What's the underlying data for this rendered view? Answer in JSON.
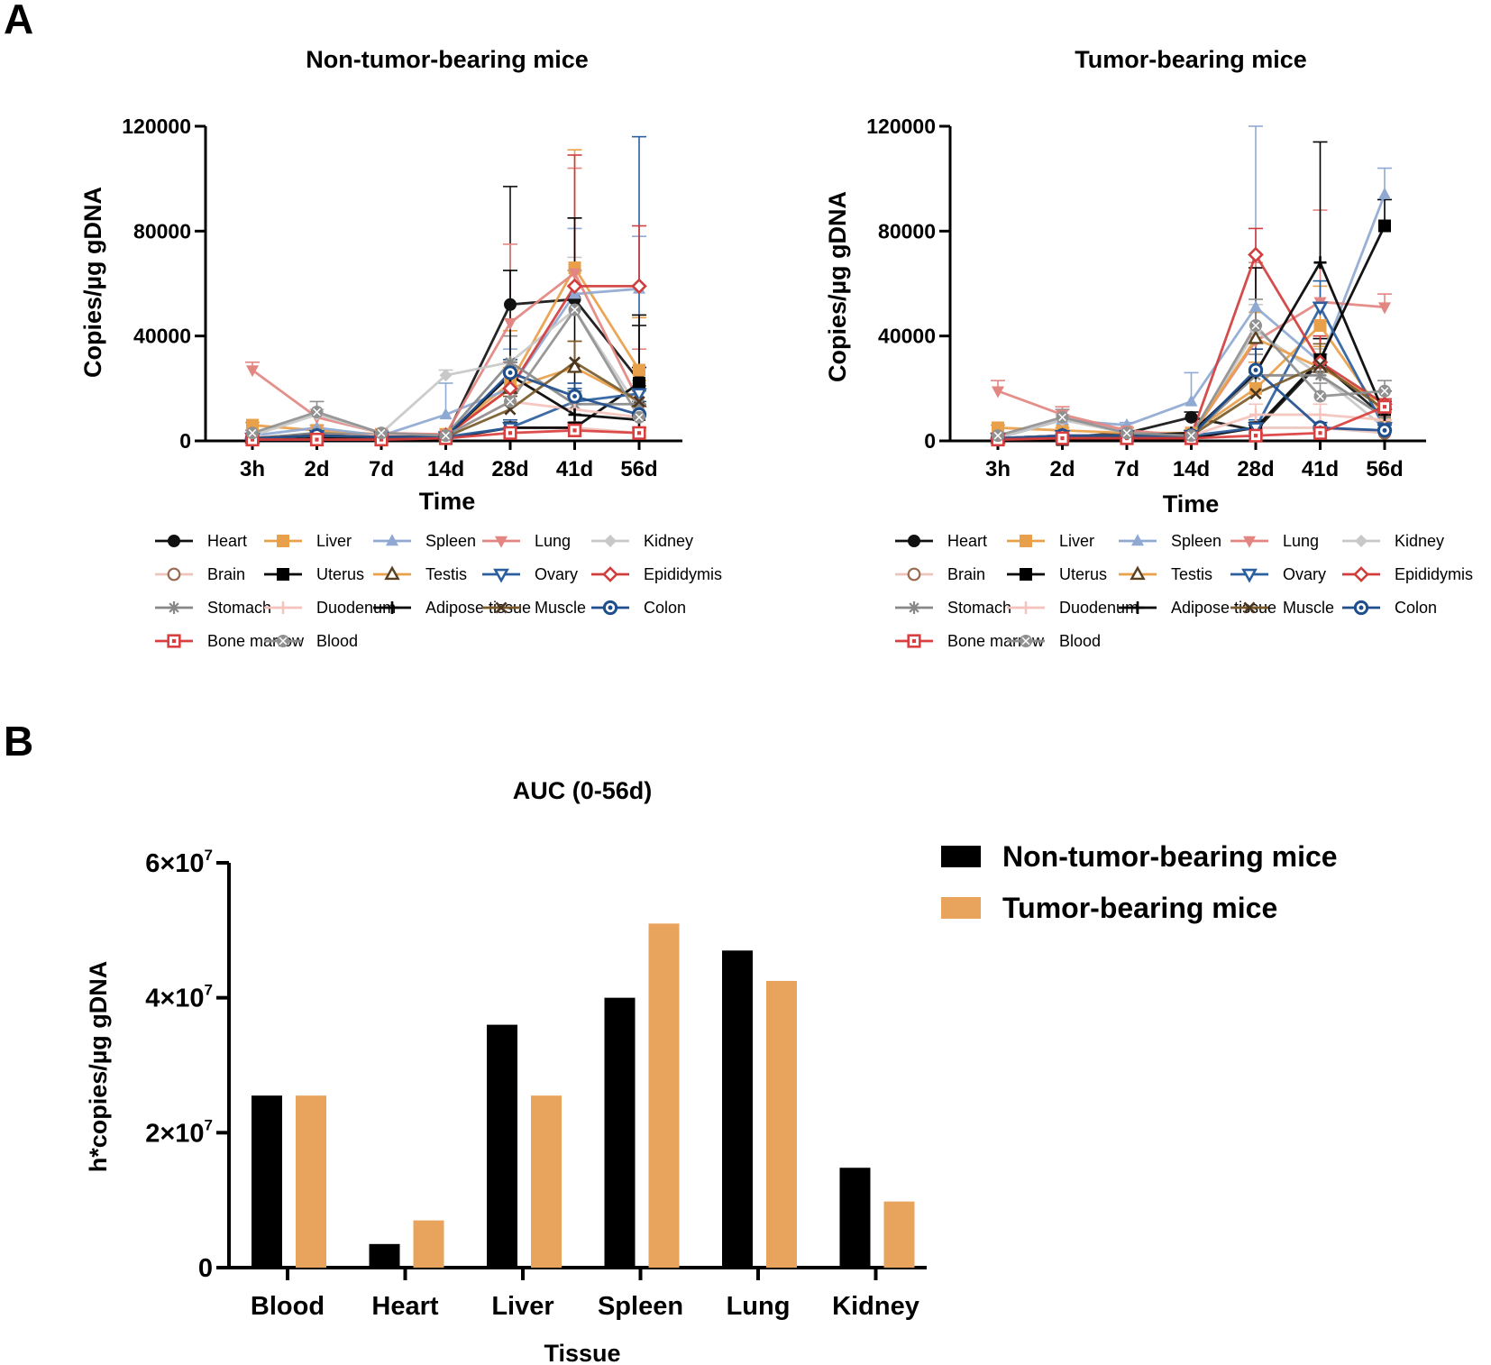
{
  "panels": {
    "a": "A",
    "b": "B"
  },
  "chart_data": [
    {
      "id": "line-a1",
      "type": "line",
      "title": "Non-tumor-bearing mice",
      "xlabel": "Time",
      "ylabel": "Copies/µg gDNA",
      "categories": [
        "3h",
        "2d",
        "7d",
        "14d",
        "28d",
        "41d",
        "56d"
      ],
      "ylim": [
        0,
        120000
      ],
      "yticks": [
        "0",
        "40000",
        "80000",
        "120000"
      ],
      "series": [
        {
          "name": "Heart",
          "color": "#111111",
          "marker": "circle",
          "values": [
            500,
            3000,
            1500,
            1500,
            52000,
            54000,
            23000
          ],
          "errors": [
            500,
            1000,
            500,
            500,
            45000,
            31000,
            21000
          ]
        },
        {
          "name": "Liver",
          "color": "#e9a04a",
          "marker": "square",
          "values": [
            6000,
            4000,
            2500,
            2500,
            22000,
            66000,
            27000
          ],
          "errors": [
            1000,
            1000,
            500,
            500,
            20000,
            45000,
            20000
          ]
        },
        {
          "name": "Spleen",
          "color": "#8fa9d2",
          "marker": "triangle",
          "values": [
            2000,
            5000,
            2000,
            10000,
            20000,
            56000,
            58000
          ],
          "errors": [
            1000,
            1000,
            500,
            12000,
            15000,
            25000,
            20000
          ]
        },
        {
          "name": "Lung",
          "color": "#e38581",
          "marker": "triangle-down",
          "values": [
            27000,
            9000,
            3000,
            2500,
            45000,
            64000,
            15000
          ],
          "errors": [
            3000,
            3000,
            1000,
            1000,
            30000,
            40000,
            20000
          ]
        },
        {
          "name": "Kidney",
          "color": "#c8c8c8",
          "marker": "diamond",
          "values": [
            2000,
            10000,
            3000,
            25000,
            30000,
            50000,
            12000
          ],
          "errors": [
            1000,
            2000,
            1000,
            2000,
            10000,
            20000,
            10000
          ]
        },
        {
          "name": "Brain",
          "color": "#eec5bd",
          "marker": "circle-open",
          "values": [
            1500,
            2000,
            1500,
            1000,
            5000,
            5000,
            3000
          ],
          "errors": [
            500,
            500,
            500,
            500,
            2000,
            2000,
            1000
          ]
        },
        {
          "name": "Uterus",
          "color": "#000000",
          "marker": "square",
          "values": [
            500,
            1000,
            1000,
            1000,
            5000,
            5000,
            22000
          ],
          "errors": [
            200,
            300,
            300,
            300,
            2000,
            2000,
            6000
          ]
        },
        {
          "name": "Testis",
          "color": "#e9a04a",
          "marker": "triangle-open",
          "values": [
            1000,
            2000,
            2000,
            2000,
            20000,
            28000,
            15000
          ],
          "errors": [
            500,
            500,
            500,
            500,
            8000,
            10000,
            8000
          ]
        },
        {
          "name": "Ovary",
          "color": "#2b5e9e",
          "marker": "triangle-down-open",
          "values": [
            1000,
            2000,
            1500,
            1500,
            5000,
            15000,
            18000
          ],
          "errors": [
            500,
            500,
            500,
            500,
            3000,
            5000,
            98000
          ]
        },
        {
          "name": "Epididymis",
          "color": "#d03d3d",
          "marker": "diamond-open",
          "values": [
            1000,
            2000,
            2000,
            2000,
            20000,
            59000,
            59000
          ],
          "errors": [
            500,
            500,
            500,
            500,
            10000,
            50000,
            23000
          ]
        },
        {
          "name": "Stomach",
          "color": "#888888",
          "marker": "asterisk",
          "values": [
            1000,
            3000,
            2000,
            2000,
            30000,
            14000,
            14000
          ],
          "errors": [
            500,
            500,
            500,
            500,
            10000,
            5000,
            5000
          ]
        },
        {
          "name": "Duodenum",
          "color": "#f5c3bd",
          "marker": "star",
          "values": [
            1000,
            2000,
            2000,
            2000,
            15000,
            12000,
            9000
          ],
          "errors": [
            500,
            500,
            500,
            500,
            5000,
            5000,
            4000
          ]
        },
        {
          "name": "Adipose tissue",
          "color": "#000000",
          "marker": "plus",
          "values": [
            1000,
            2000,
            1500,
            1500,
            25000,
            10000,
            8000
          ],
          "errors": [
            500,
            500,
            500,
            500,
            40000,
            75000,
            40000
          ]
        },
        {
          "name": "Muscle",
          "color": "#7a5a2a",
          "marker": "cross",
          "values": [
            1000,
            2000,
            1500,
            1500,
            12000,
            30000,
            15000
          ],
          "errors": [
            500,
            500,
            500,
            500,
            5000,
            8000,
            6000
          ]
        },
        {
          "name": "Colon",
          "color": "#1f4e8c",
          "marker": "circle-dot",
          "values": [
            1000,
            2000,
            1500,
            1500,
            26000,
            17000,
            10000
          ],
          "errors": [
            500,
            500,
            500,
            500,
            5000,
            5000,
            5000
          ]
        },
        {
          "name": "Bone marrow",
          "color": "#d93f3f",
          "marker": "square-dot",
          "values": [
            500,
            500,
            500,
            1000,
            3000,
            4000,
            3000
          ],
          "errors": [
            200,
            200,
            200,
            300,
            2000,
            2000,
            2000
          ]
        },
        {
          "name": "Blood",
          "color": "#909090",
          "marker": "circle-x",
          "values": [
            3000,
            11000,
            3000,
            2000,
            15000,
            50000,
            9000
          ],
          "errors": [
            1000,
            4000,
            1000,
            500,
            5000,
            15000,
            5000
          ]
        }
      ]
    },
    {
      "id": "line-a2",
      "type": "line",
      "title": "Tumor-bearing mice",
      "xlabel": "Time",
      "ylabel": "Copies/µg gDNA",
      "categories": [
        "3h",
        "2d",
        "7d",
        "14d",
        "28d",
        "41d",
        "56d"
      ],
      "ylim": [
        0,
        120000
      ],
      "yticks": [
        "0",
        "40000",
        "80000",
        "120000"
      ],
      "series": [
        {
          "name": "Heart",
          "color": "#111111",
          "marker": "circle",
          "values": [
            500,
            1500,
            3000,
            9000,
            4000,
            30000,
            9000
          ],
          "errors": [
            300,
            500,
            1000,
            2000,
            2000,
            5000,
            3000
          ]
        },
        {
          "name": "Liver",
          "color": "#e9a04a",
          "marker": "square",
          "values": [
            5000,
            4000,
            3000,
            3000,
            20000,
            44000,
            9000
          ],
          "errors": [
            1000,
            1000,
            1000,
            1000,
            10000,
            15000,
            5000
          ]
        },
        {
          "name": "Spleen",
          "color": "#8fa9d2",
          "marker": "triangle",
          "values": [
            1000,
            8000,
            6000,
            15000,
            51000,
            30000,
            94000
          ],
          "errors": [
            500,
            2000,
            1000,
            11000,
            69000,
            10000,
            10000
          ]
        },
        {
          "name": "Lung",
          "color": "#e38581",
          "marker": "triangle-down",
          "values": [
            19000,
            10000,
            4000,
            2000,
            38000,
            53000,
            51000
          ],
          "errors": [
            4000,
            3000,
            1000,
            1000,
            30000,
            35000,
            5000
          ]
        },
        {
          "name": "Kidney",
          "color": "#c8c8c8",
          "marker": "diamond",
          "values": [
            1000,
            8000,
            3000,
            2000,
            42000,
            25000,
            5000
          ],
          "errors": [
            500,
            2000,
            1000,
            1000,
            10000,
            10000,
            3000
          ]
        },
        {
          "name": "Brain",
          "color": "#eec5bd",
          "marker": "circle-open",
          "values": [
            1000,
            1000,
            1000,
            1000,
            5000,
            5000,
            3000
          ],
          "errors": [
            300,
            300,
            300,
            300,
            2000,
            2000,
            1000
          ]
        },
        {
          "name": "Uterus",
          "color": "#000000",
          "marker": "square",
          "values": [
            500,
            500,
            1000,
            1000,
            5000,
            31000,
            82000
          ],
          "errors": [
            200,
            200,
            300,
            300,
            2000,
            8000,
            10000
          ]
        },
        {
          "name": "Testis",
          "color": "#e9a04a",
          "marker": "triangle-open",
          "values": [
            1000,
            2000,
            2000,
            2000,
            39000,
            28000,
            14000
          ],
          "errors": [
            500,
            500,
            500,
            500,
            10000,
            8000,
            5000
          ]
        },
        {
          "name": "Ovary",
          "color": "#2b5e9e",
          "marker": "triangle-down-open",
          "values": [
            1000,
            2000,
            2000,
            2000,
            5000,
            51000,
            5000
          ],
          "errors": [
            500,
            500,
            500,
            500,
            3000,
            10000,
            2000
          ]
        },
        {
          "name": "Epididymis",
          "color": "#d03d3d",
          "marker": "diamond-open",
          "values": [
            1000,
            2000,
            2000,
            2000,
            71000,
            30000,
            14000
          ],
          "errors": [
            500,
            500,
            500,
            500,
            10000,
            10000,
            5000
          ]
        },
        {
          "name": "Stomach",
          "color": "#888888",
          "marker": "asterisk",
          "values": [
            1000,
            2000,
            2000,
            2000,
            25000,
            25000,
            9000
          ],
          "errors": [
            500,
            500,
            500,
            500,
            8000,
            8000,
            4000
          ]
        },
        {
          "name": "Duodenum",
          "color": "#f5c3bd",
          "marker": "star",
          "values": [
            1000,
            2000,
            2000,
            2000,
            10000,
            10000,
            8000
          ],
          "errors": [
            500,
            500,
            500,
            500,
            4000,
            4000,
            3000
          ]
        },
        {
          "name": "Adipose tissue",
          "color": "#000000",
          "marker": "plus",
          "values": [
            500,
            1500,
            2000,
            3000,
            26000,
            68000,
            10000
          ],
          "errors": [
            300,
            500,
            500,
            1000,
            40000,
            46000,
            5000
          ]
        },
        {
          "name": "Muscle",
          "color": "#7a5a2a",
          "marker": "cross",
          "values": [
            500,
            1500,
            2000,
            2000,
            18000,
            29000,
            12000
          ],
          "errors": [
            300,
            500,
            500,
            500,
            8000,
            8000,
            4000
          ]
        },
        {
          "name": "Colon",
          "color": "#1f4e8c",
          "marker": "circle-dot",
          "values": [
            1000,
            2000,
            2000,
            2000,
            27000,
            5000,
            4000
          ],
          "errors": [
            500,
            500,
            500,
            500,
            8000,
            2000,
            2000
          ]
        },
        {
          "name": "Bone marrow",
          "color": "#d93f3f",
          "marker": "square-dot",
          "values": [
            500,
            1000,
            1000,
            1000,
            2000,
            3000,
            13000
          ],
          "errors": [
            200,
            300,
            300,
            300,
            1000,
            1000,
            3000
          ]
        },
        {
          "name": "Blood",
          "color": "#909090",
          "marker": "circle-x",
          "values": [
            2000,
            9000,
            3000,
            2000,
            44000,
            17000,
            19000
          ],
          "errors": [
            1000,
            3000,
            1000,
            500,
            10000,
            5000,
            4000
          ]
        }
      ]
    },
    {
      "id": "bar-b",
      "type": "bar",
      "title": "AUC (0-56d)",
      "xlabel": "Tissue",
      "ylabel": "h*copies/µg gDNA",
      "categories": [
        "Blood",
        "Heart",
        "Liver",
        "Spleen",
        "Lung",
        "Kidney"
      ],
      "ylim": [
        0,
        60000000
      ],
      "yticks": [
        {
          "value": 0,
          "base": "0",
          "exp": ""
        },
        {
          "value": 20000000,
          "base": "2×10",
          "exp": "7"
        },
        {
          "value": 40000000,
          "base": "4×10",
          "exp": "7"
        },
        {
          "value": 60000000,
          "base": "6×10",
          "exp": "7"
        }
      ],
      "series": [
        {
          "name": "Non-tumor-bearing mice",
          "color": "#000000",
          "values": [
            25500000,
            3500000,
            36000000,
            40000000,
            47000000,
            14800000
          ]
        },
        {
          "name": "Tumor-bearing mice",
          "color": "#e8a45c",
          "values": [
            25500000,
            7000000,
            25500000,
            51000000,
            42500000,
            9800000
          ]
        }
      ]
    }
  ]
}
